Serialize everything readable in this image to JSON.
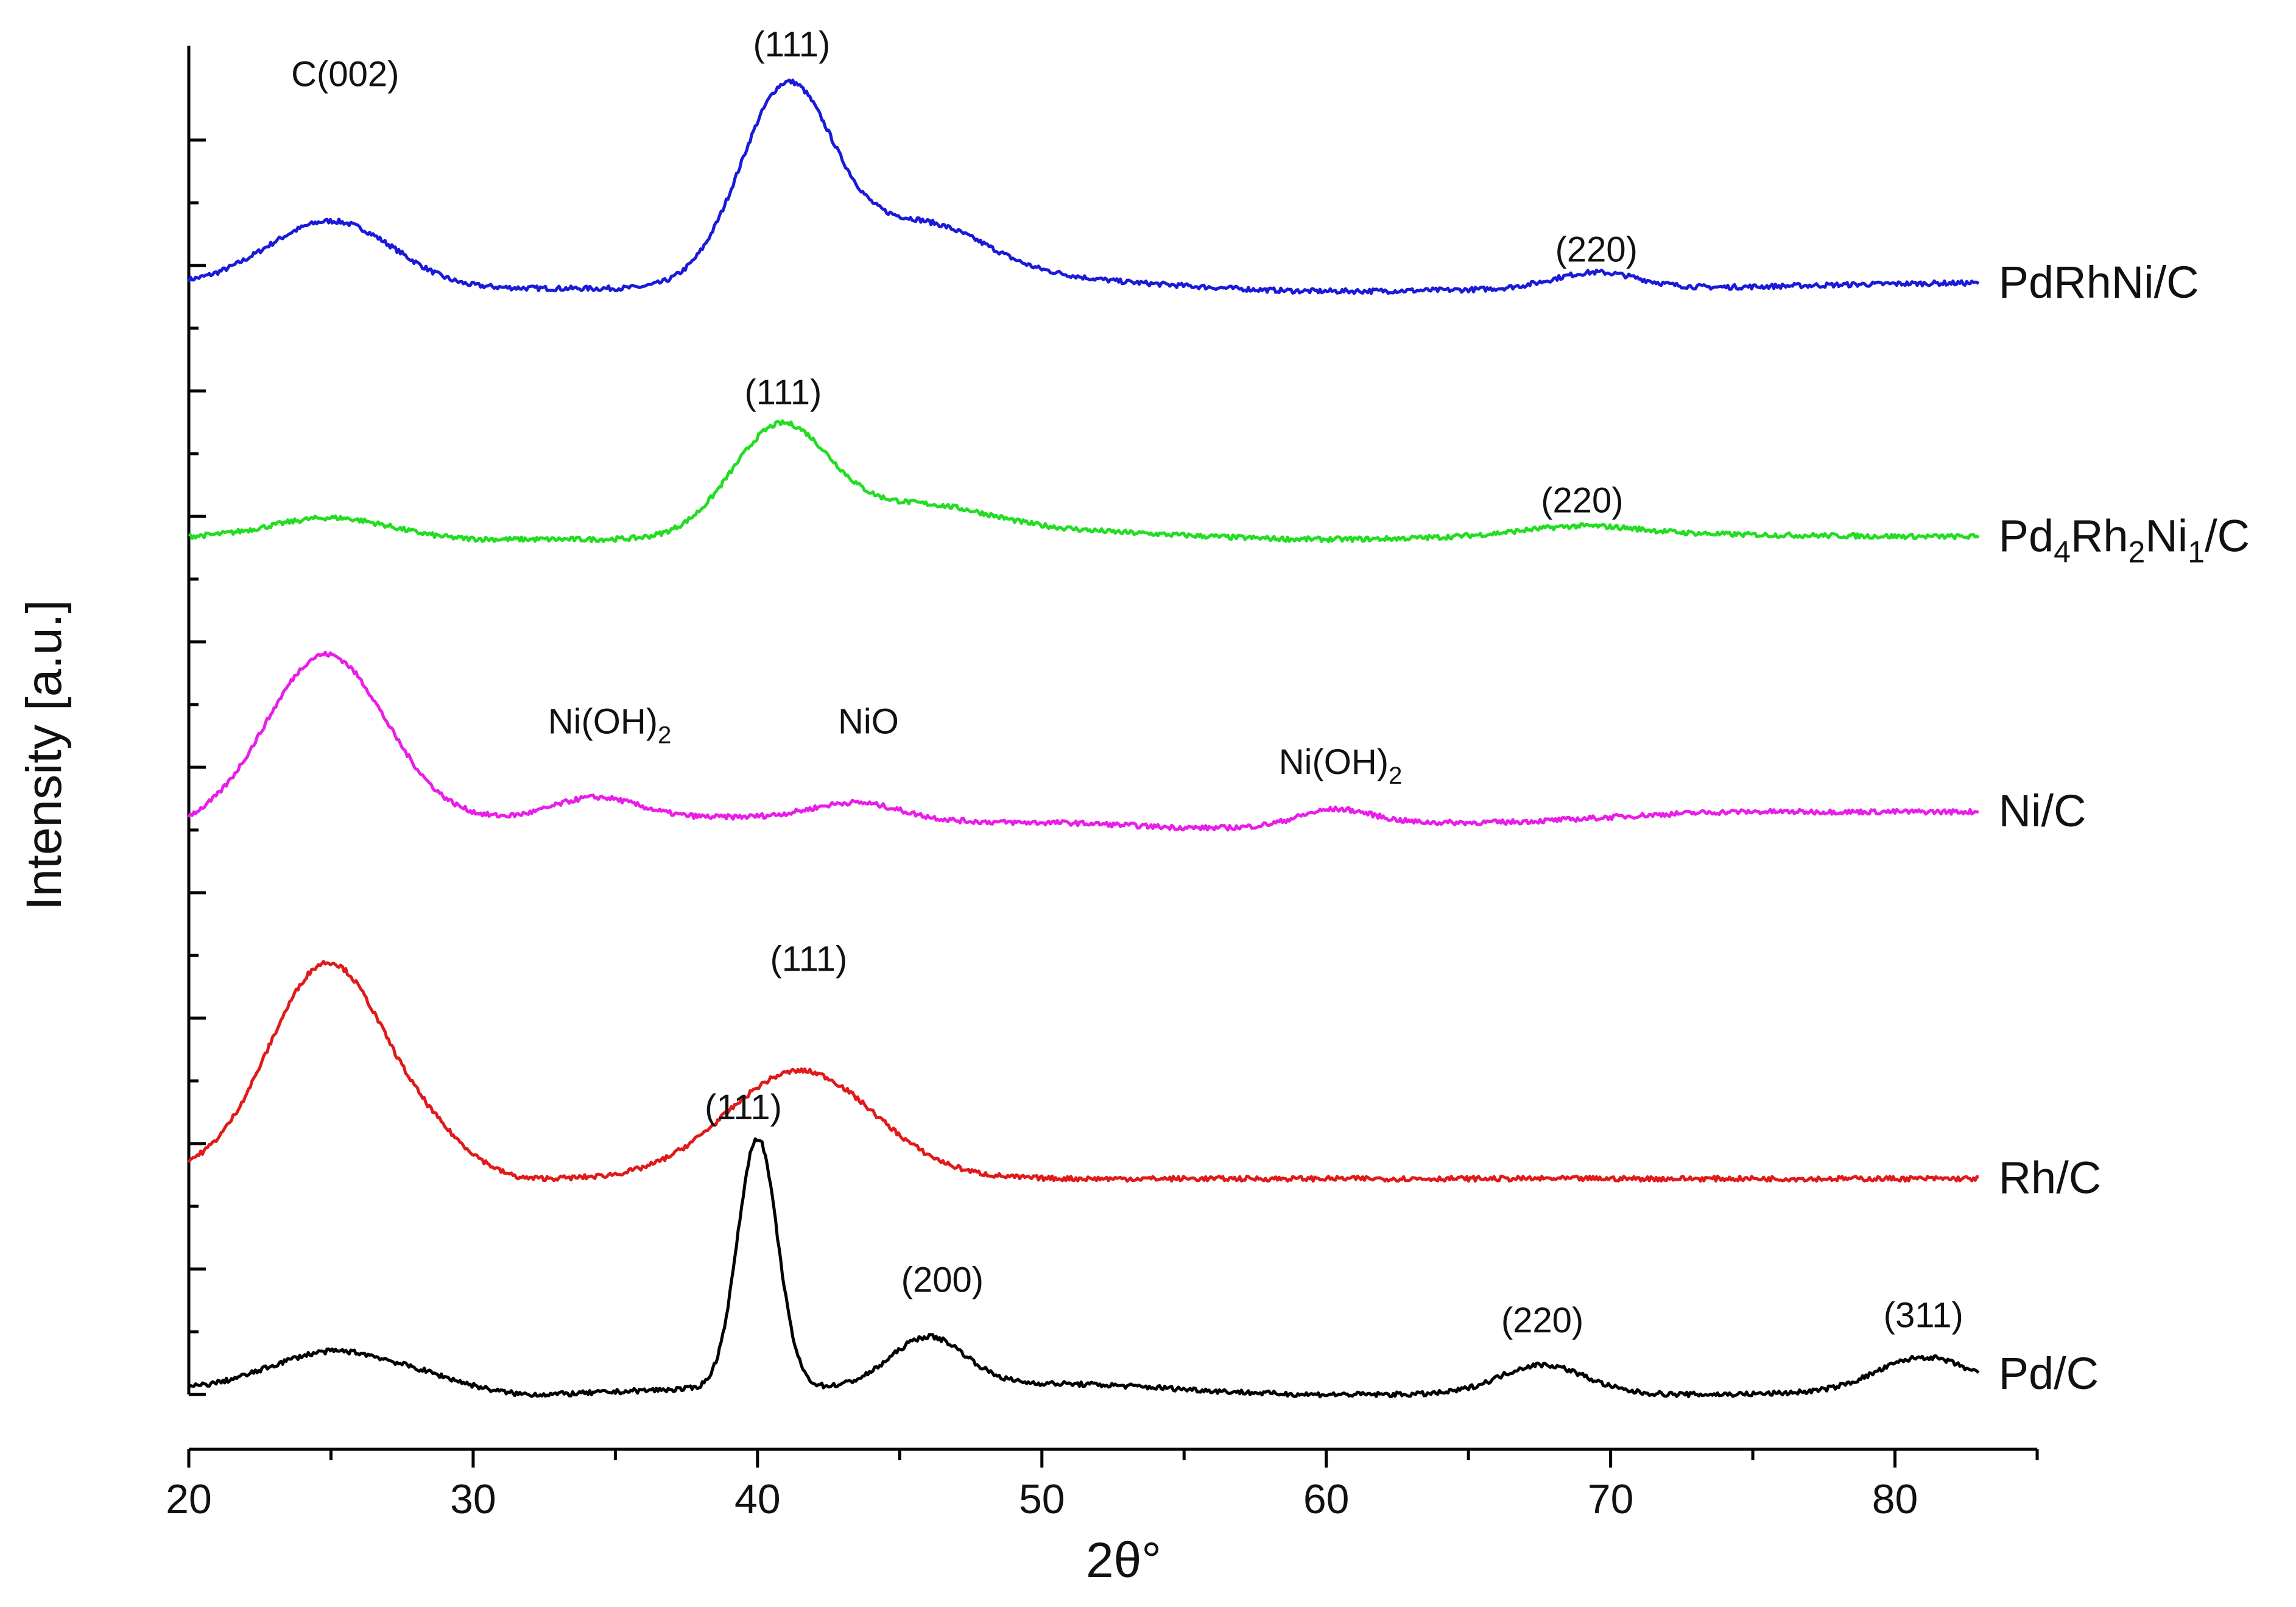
{
  "chart_data": {
    "type": "line",
    "title": "",
    "xlabel": "2θ°",
    "ylabel": "Intensity [a.u.]",
    "xlim": [
      20,
      85
    ],
    "x_ticks": [
      "20",
      "30",
      "40",
      "50",
      "60",
      "70",
      "80"
    ],
    "y_ticks_labeled": false,
    "series": [
      {
        "name": "PdRhNi/C",
        "name_main": "PdRhNi/C",
        "name_parts": [],
        "color": "#1a1ad8",
        "offset": 4,
        "baseline": [
          [
            20,
            0.12
          ],
          [
            25,
            0.17
          ],
          [
            30,
            0.1
          ],
          [
            35,
            0.1
          ],
          [
            45,
            0.2
          ],
          [
            50,
            0.13
          ],
          [
            60,
            0.09
          ],
          [
            70,
            0.1
          ],
          [
            83,
            0.12
          ]
        ],
        "peaks": [
          [
            25,
            0.18,
            2.2
          ],
          [
            41,
            0.68,
            1.6
          ],
          [
            46,
            0.15,
            2.5
          ],
          [
            69.5,
            0.06,
            1.5
          ]
        ],
        "labels": [
          {
            "x": 25.5,
            "y": 4.85,
            "text": "C(002)",
            "sub": ""
          },
          {
            "x": 41.2,
            "y": 4.96,
            "text": "(111)",
            "sub": ""
          },
          {
            "x": 69.5,
            "y": 4.2,
            "text": "(220)",
            "sub": ""
          }
        ]
      },
      {
        "name": "Pd4Rh2Ni1/C",
        "name_main": "Pd",
        "name_parts": [
          [
            "4",
            "Rh"
          ],
          [
            "2",
            "Ni"
          ],
          [
            "1",
            "/C"
          ]
        ],
        "color": "#22dd22",
        "offset": 3.1,
        "baseline": [
          [
            20,
            0.08
          ],
          [
            25,
            0.1
          ],
          [
            30,
            0.07
          ],
          [
            35,
            0.07
          ],
          [
            45,
            0.12
          ],
          [
            50,
            0.1
          ],
          [
            60,
            0.07
          ],
          [
            70,
            0.09
          ],
          [
            83,
            0.08
          ]
        ],
        "peaks": [
          [
            25,
            0.05,
            2
          ],
          [
            40.8,
            0.39,
            1.7
          ],
          [
            46,
            0.08,
            2.5
          ],
          [
            69,
            0.03,
            2
          ]
        ],
        "labels": [
          {
            "x": 40.9,
            "y": 3.67,
            "text": "(111)",
            "sub": ""
          },
          {
            "x": 69,
            "y": 3.27,
            "text": "(220)",
            "sub": ""
          }
        ]
      },
      {
        "name": "Ni/C",
        "name_main": "Ni/C",
        "name_parts": [],
        "color": "#e81ee8",
        "offset": 2.1,
        "baseline": [
          [
            20,
            0.0
          ],
          [
            30,
            0.03
          ],
          [
            40,
            0.04
          ],
          [
            50,
            0.02
          ],
          [
            56,
            0.0
          ],
          [
            65,
            0.02
          ],
          [
            75,
            0.06
          ],
          [
            83,
            0.06
          ]
        ],
        "peaks": [
          [
            24.8,
            0.63,
            2.1
          ],
          [
            34.3,
            0.08,
            1.5
          ],
          [
            43.5,
            0.06,
            1.5
          ],
          [
            60.3,
            0.06,
            1.3
          ]
        ],
        "labels": [
          {
            "x": 34.8,
            "y": 2.45,
            "text": "Ni(OH)",
            "sub": "2"
          },
          {
            "x": 43.9,
            "y": 2.45,
            "text": "NiO",
            "sub": ""
          },
          {
            "x": 60.5,
            "y": 2.3,
            "text": "Ni(OH)",
            "sub": "2"
          }
        ]
      },
      {
        "name": "Rh/C",
        "name_main": "Rh/C",
        "name_parts": [],
        "color": "#e01a1a",
        "offset": 0.8,
        "baseline": [
          [
            20,
            0.03
          ],
          [
            28,
            0.14
          ],
          [
            32,
            0.0
          ],
          [
            36,
            0.0
          ],
          [
            50,
            0.0
          ],
          [
            60,
            0.0
          ],
          [
            83,
            0.0
          ]
        ],
        "peaks": [
          [
            24.8,
            0.7,
            2.0
          ],
          [
            41.5,
            0.4,
            2.6
          ]
        ],
        "labels": [
          {
            "x": 41.8,
            "y": 1.57,
            "text": "(111)",
            "sub": ""
          }
        ]
      },
      {
        "name": "Pd/C",
        "name_main": "Pd/C",
        "name_parts": [],
        "color": "#000000",
        "offset": 0,
        "baseline": [
          [
            20,
            0.02
          ],
          [
            28,
            0.05
          ],
          [
            32,
            0.0
          ],
          [
            38,
            0.02
          ],
          [
            50,
            0.04
          ],
          [
            60,
            0.0
          ],
          [
            73,
            0.0
          ],
          [
            83,
            0.02
          ]
        ],
        "peaks": [
          [
            25,
            0.12,
            2.2
          ],
          [
            40,
            0.93,
            0.7
          ],
          [
            46,
            0.18,
            1.3
          ],
          [
            67.6,
            0.11,
            1.5
          ],
          [
            81,
            0.12,
            1.6
          ]
        ],
        "labels": [
          {
            "x": 39.5,
            "y": 1.02,
            "text": "(111)",
            "sub": ""
          },
          {
            "x": 46.5,
            "y": 0.38,
            "text": "(200)",
            "sub": ""
          },
          {
            "x": 67.6,
            "y": 0.23,
            "text": "(220)",
            "sub": ""
          },
          {
            "x": 81,
            "y": 0.25,
            "text": "(311)",
            "sub": ""
          }
        ]
      }
    ]
  }
}
